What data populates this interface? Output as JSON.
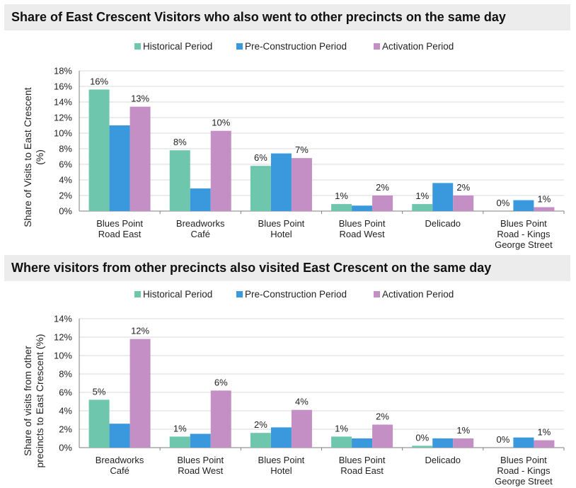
{
  "colors": {
    "historical": "#6ec7ad",
    "pre_construction": "#3a99dc",
    "activation": "#c48fc5",
    "axis": "#7f7f7f",
    "grid": "#d9d9d9",
    "title_background": "#ececec"
  },
  "chart_data": [
    {
      "type": "bar",
      "title": "Share of East Crescent Visitors who also went to other precincts on the same day",
      "ylabel": "Share of Visits to East Crescent (%)",
      "ylim": [
        0,
        18
      ],
      "yticks": [
        "0%",
        "2%",
        "4%",
        "6%",
        "8%",
        "10%",
        "12%",
        "14%",
        "16%",
        "18%"
      ],
      "legend_position": "top-center",
      "grid": true,
      "categories": [
        [
          "Blues Point",
          "Road East"
        ],
        [
          "Breadworks",
          "Café"
        ],
        [
          "Blues Point",
          "Hotel"
        ],
        [
          "Blues Point",
          "Road West"
        ],
        [
          "Delicado"
        ],
        [
          "Blues Point",
          "Road - Kings",
          "George Street"
        ]
      ],
      "series": [
        {
          "name": "Historical Period",
          "values": [
            15.6,
            7.8,
            5.8,
            0.9,
            0.9,
            0.0
          ]
        },
        {
          "name": "Pre-Construction Period",
          "values": [
            11.0,
            2.9,
            7.4,
            0.7,
            3.6,
            1.4
          ]
        },
        {
          "name": "Activation Period",
          "values": [
            13.4,
            10.3,
            6.8,
            2.0,
            2.0,
            0.5
          ]
        }
      ],
      "data_labels": [
        {
          "category": 0,
          "series": 0,
          "text": "16%"
        },
        {
          "category": 0,
          "series": 2,
          "text": "13%"
        },
        {
          "category": 1,
          "series": 0,
          "text": "8%"
        },
        {
          "category": 1,
          "series": 2,
          "text": "10%"
        },
        {
          "category": 2,
          "series": 0,
          "text": "6%"
        },
        {
          "category": 2,
          "series": 2,
          "text": "7%"
        },
        {
          "category": 3,
          "series": 0,
          "text": "1%"
        },
        {
          "category": 3,
          "series": 2,
          "text": "2%"
        },
        {
          "category": 4,
          "series": 0,
          "text": "1%"
        },
        {
          "category": 4,
          "series": 2,
          "text": "2%"
        },
        {
          "category": 5,
          "series": 0,
          "text": "0%"
        },
        {
          "category": 5,
          "series": 2,
          "text": "1%"
        }
      ]
    },
    {
      "type": "bar",
      "title": "Where visitors from other precincts also visited East Crescent on the same day",
      "ylabel": "Share of visits from other precincts to East Crescent (%)",
      "ylim": [
        0,
        14
      ],
      "yticks": [
        "0%",
        "2%",
        "4%",
        "6%",
        "8%",
        "10%",
        "12%",
        "14%"
      ],
      "legend_position": "top-center",
      "grid": true,
      "categories": [
        [
          "Breadworks",
          "Café"
        ],
        [
          "Blues Point",
          "Road West"
        ],
        [
          "Blues Point",
          "Hotel"
        ],
        [
          "Blues Point",
          "Road East"
        ],
        [
          "Delicado"
        ],
        [
          "Blues Point",
          "Road - Kings",
          "George Street"
        ]
      ],
      "series": [
        {
          "name": "Historical Period",
          "values": [
            5.2,
            1.2,
            1.6,
            1.2,
            0.2,
            0.0
          ]
        },
        {
          "name": "Pre-Construction Period",
          "values": [
            2.6,
            1.5,
            2.2,
            1.0,
            1.0,
            1.1
          ]
        },
        {
          "name": "Activation Period",
          "values": [
            11.8,
            6.2,
            4.1,
            2.5,
            1.0,
            0.8
          ]
        }
      ],
      "data_labels": [
        {
          "category": 0,
          "series": 0,
          "text": "5%"
        },
        {
          "category": 0,
          "series": 2,
          "text": "12%"
        },
        {
          "category": 1,
          "series": 0,
          "text": "1%"
        },
        {
          "category": 1,
          "series": 2,
          "text": "6%"
        },
        {
          "category": 2,
          "series": 0,
          "text": "2%"
        },
        {
          "category": 2,
          "series": 2,
          "text": "4%"
        },
        {
          "category": 3,
          "series": 0,
          "text": "1%"
        },
        {
          "category": 3,
          "series": 2,
          "text": "2%"
        },
        {
          "category": 4,
          "series": 0,
          "text": "0%"
        },
        {
          "category": 4,
          "series": 2,
          "text": "1%"
        },
        {
          "category": 5,
          "series": 0,
          "text": "0%"
        },
        {
          "category": 5,
          "series": 2,
          "text": "1%"
        }
      ]
    }
  ]
}
